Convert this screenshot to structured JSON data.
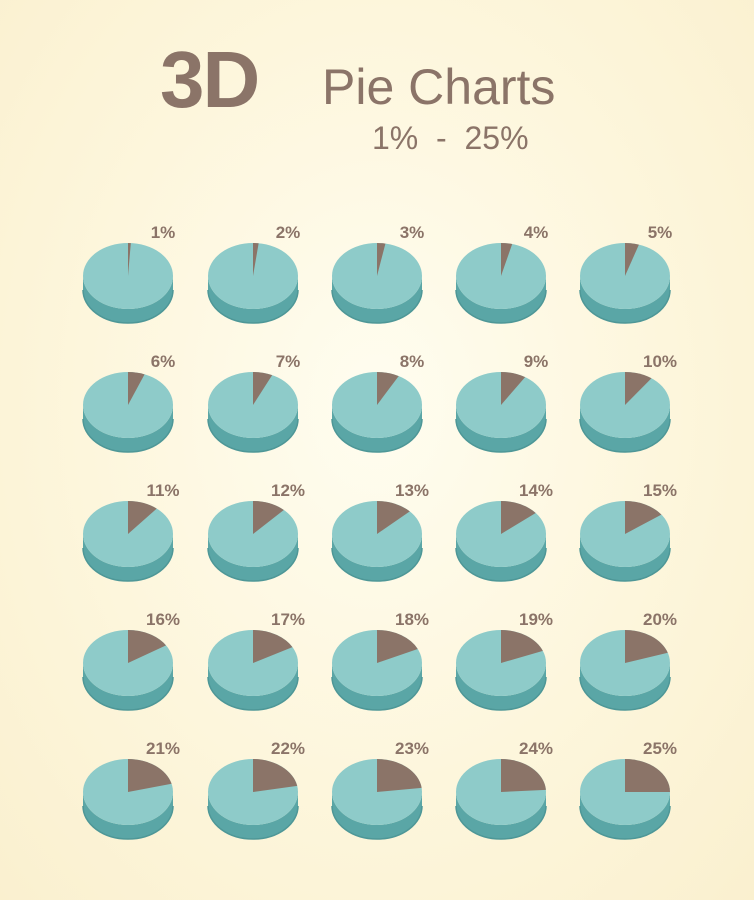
{
  "header": {
    "title_bold": "3D",
    "title_rest": "Pie Charts",
    "subtitle": "1%  -  25%"
  },
  "colors": {
    "pie_top": "#8ecbc9",
    "pie_side": "#5aa6a6",
    "pie_side_dark": "#4e9797",
    "slice_top": "#8b7468",
    "slice_side": "#6e5b52",
    "text": "#8b7468"
  },
  "chart_data": {
    "type": "pie",
    "title": "3D Pie Charts",
    "subtitle": "1%  -  25%",
    "charts": [
      {
        "label": "1%",
        "value": 1
      },
      {
        "label": "2%",
        "value": 2
      },
      {
        "label": "3%",
        "value": 3
      },
      {
        "label": "4%",
        "value": 4
      },
      {
        "label": "5%",
        "value": 5
      },
      {
        "label": "6%",
        "value": 6
      },
      {
        "label": "7%",
        "value": 7
      },
      {
        "label": "8%",
        "value": 8
      },
      {
        "label": "9%",
        "value": 9
      },
      {
        "label": "10%",
        "value": 10
      },
      {
        "label": "11%",
        "value": 11
      },
      {
        "label": "12%",
        "value": 12
      },
      {
        "label": "13%",
        "value": 13
      },
      {
        "label": "14%",
        "value": 14
      },
      {
        "label": "15%",
        "value": 15
      },
      {
        "label": "16%",
        "value": 16
      },
      {
        "label": "17%",
        "value": 17
      },
      {
        "label": "18%",
        "value": 18
      },
      {
        "label": "19%",
        "value": 19
      },
      {
        "label": "20%",
        "value": 20
      },
      {
        "label": "21%",
        "value": 21
      },
      {
        "label": "22%",
        "value": 22
      },
      {
        "label": "23%",
        "value": 23
      },
      {
        "label": "24%",
        "value": 24
      },
      {
        "label": "25%",
        "value": 25
      }
    ]
  }
}
